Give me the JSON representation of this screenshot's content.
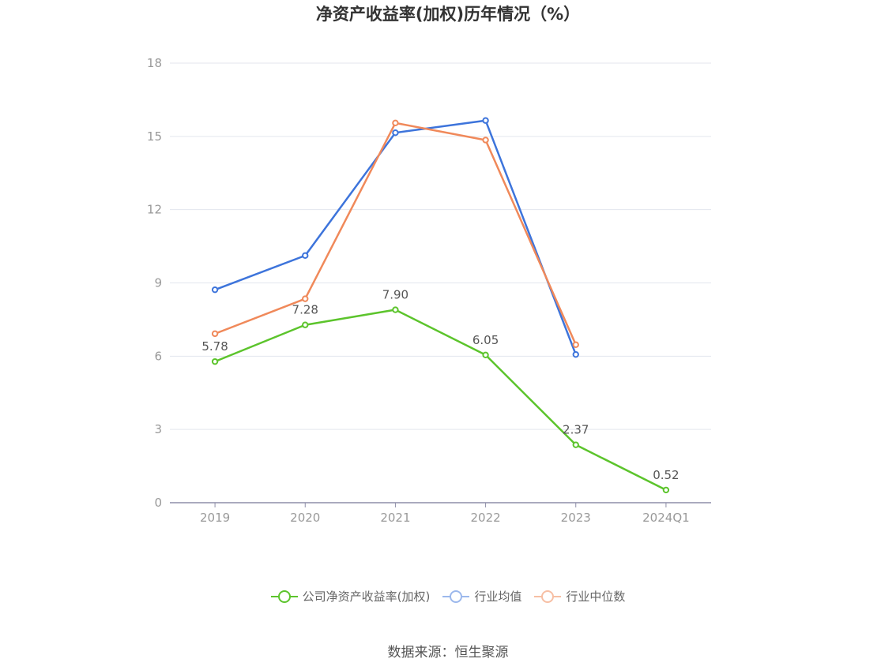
{
  "chart_data": {
    "type": "line",
    "title": "净资产收益率(加权)历年情况（%）",
    "categories": [
      "2019",
      "2020",
      "2021",
      "2022",
      "2023",
      "2024Q1"
    ],
    "ylim": [
      0,
      18
    ],
    "yticks": [
      0,
      3,
      6,
      9,
      12,
      15,
      18
    ],
    "grid": true,
    "legend_position": "bottom",
    "series": [
      {
        "name": "公司净资产收益率(加权)",
        "color": "#5cc42c",
        "values": [
          5.78,
          7.28,
          7.9,
          6.05,
          2.37,
          0.52
        ],
        "labels": [
          "5.78",
          "7.28",
          "7.90",
          "6.05",
          "2.37",
          "0.52"
        ]
      },
      {
        "name": "行业均值",
        "color": "#3d74db",
        "values": [
          8.72,
          10.12,
          15.15,
          15.65,
          6.07,
          null
        ]
      },
      {
        "name": "行业中位数",
        "color": "#f0895a",
        "values": [
          6.92,
          8.35,
          15.55,
          14.85,
          6.47,
          null
        ]
      }
    ]
  },
  "source": "数据来源：恒生聚源"
}
